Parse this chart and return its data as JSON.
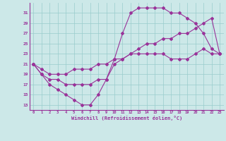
{
  "bg_color": "#cce8e8",
  "grid_color": "#99cccc",
  "line_color": "#993399",
  "xlabel": "Windchill (Refroidissement éolien,°C)",
  "xlim": [
    -0.5,
    23.5
  ],
  "ylim": [
    12,
    33
  ],
  "xticks": [
    0,
    1,
    2,
    3,
    4,
    5,
    6,
    7,
    8,
    9,
    10,
    11,
    12,
    13,
    14,
    15,
    16,
    17,
    18,
    19,
    20,
    21,
    22,
    23
  ],
  "yticks": [
    13,
    15,
    17,
    19,
    21,
    23,
    25,
    27,
    29,
    31
  ],
  "line1_x": [
    0,
    1,
    2,
    3,
    4,
    5,
    6,
    7,
    8,
    9,
    10,
    11,
    12,
    13,
    14,
    15,
    16,
    17,
    18,
    19,
    20,
    21,
    22,
    23
  ],
  "line1_y": [
    21,
    19,
    17,
    16,
    15,
    14,
    13,
    13,
    15,
    18,
    21,
    22,
    23,
    23,
    23,
    23,
    23,
    22,
    22,
    22,
    23,
    24,
    23,
    23
  ],
  "line2_x": [
    0,
    1,
    2,
    3,
    4,
    5,
    6,
    7,
    8,
    9,
    10,
    11,
    12,
    13,
    14,
    15,
    16,
    17,
    18,
    19,
    20,
    21,
    22,
    23
  ],
  "line2_y": [
    21,
    20,
    19,
    19,
    19,
    20,
    20,
    20,
    21,
    21,
    22,
    22,
    23,
    24,
    25,
    25,
    26,
    26,
    27,
    27,
    28,
    29,
    30,
    23
  ],
  "line3_x": [
    0,
    1,
    2,
    3,
    4,
    5,
    6,
    7,
    8,
    9,
    10,
    11,
    12,
    13,
    14,
    15,
    16,
    17,
    18,
    19,
    20,
    21,
    22,
    23
  ],
  "line3_y": [
    21,
    19,
    18,
    18,
    17,
    17,
    17,
    17,
    18,
    18,
    22,
    27,
    31,
    32,
    32,
    32,
    32,
    31,
    31,
    30,
    29,
    27,
    24,
    23
  ]
}
